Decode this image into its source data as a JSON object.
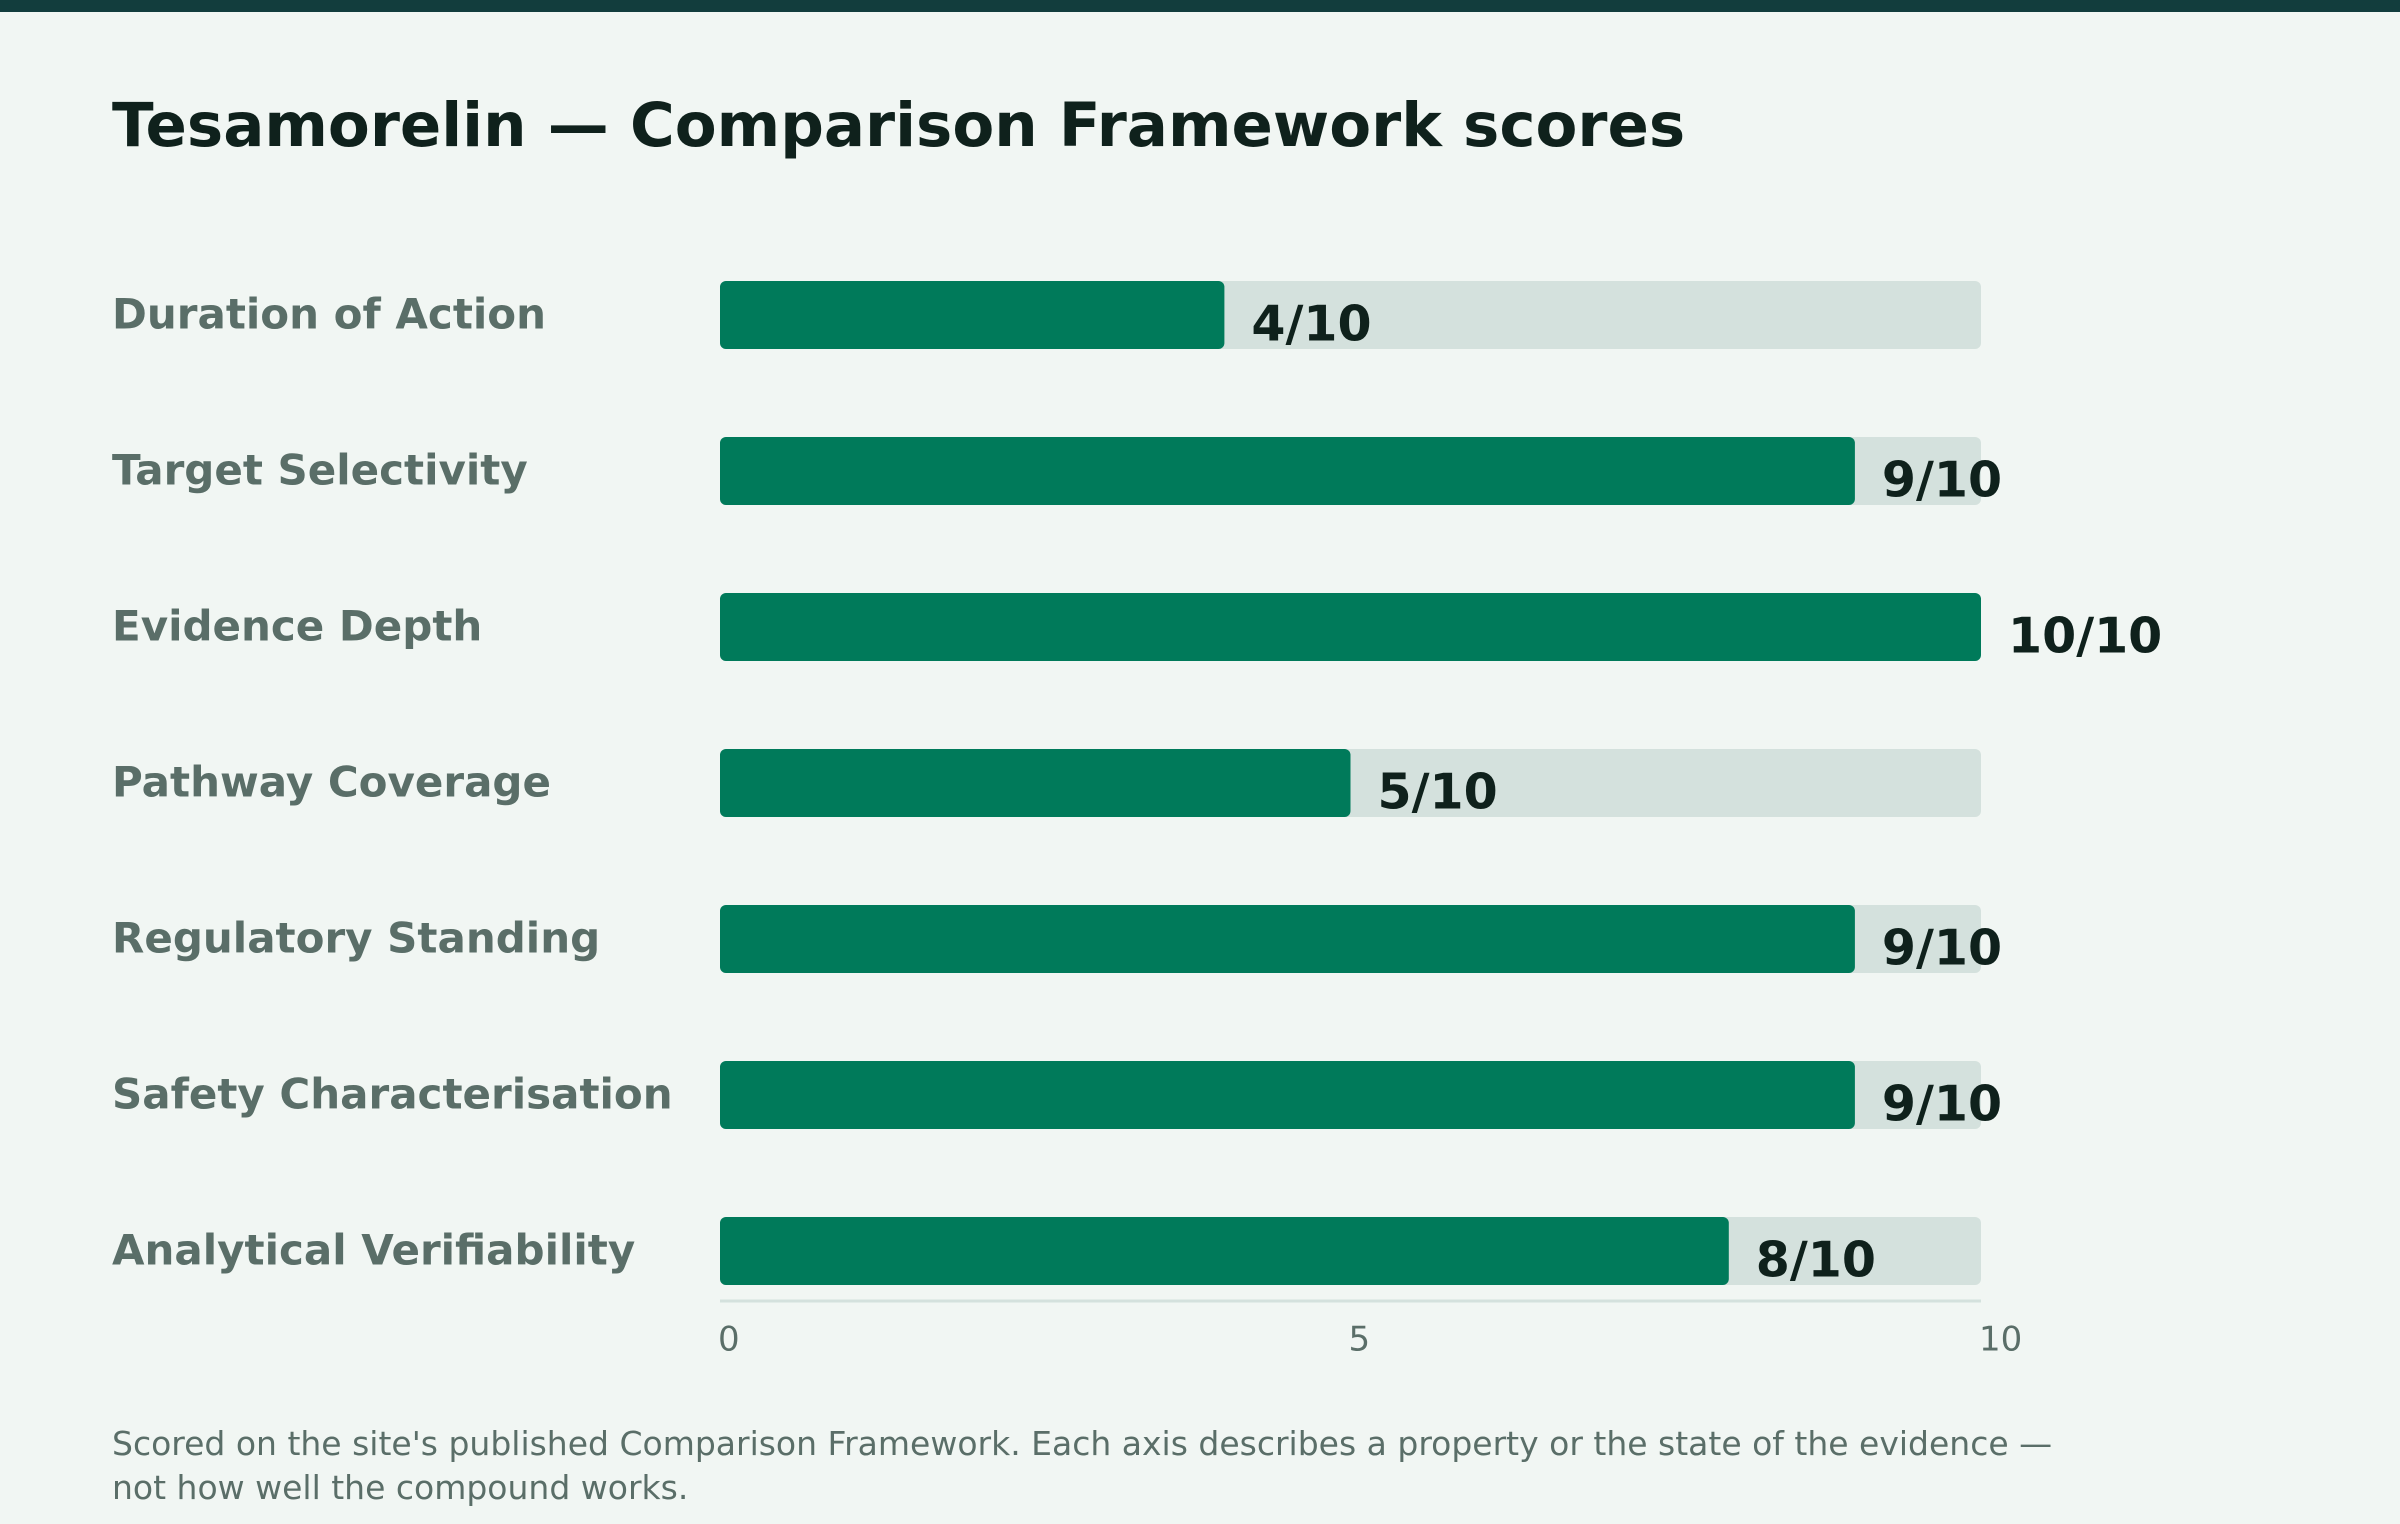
{
  "title": "Tesamorelin — Comparison Framework scores",
  "footnote": "Scored on the site's published Comparison Framework. Each axis describes a property or the state of the evidence — not how well the compound works.",
  "colors": {
    "bar_fill": "#007a5a",
    "track": "#d4e1dd",
    "label": "#5a6e68",
    "value_label": "#0f211c",
    "axis": "#d4e1dd",
    "top_bar": "#123d3d",
    "background": "#f1f6f3"
  },
  "chart_data": {
    "type": "bar",
    "orientation": "horizontal",
    "categories": [
      "Duration of Action",
      "Target Selectivity",
      "Evidence Depth",
      "Pathway Coverage",
      "Regulatory Standing",
      "Safety Characterisation",
      "Analytical Verifiability"
    ],
    "values": [
      4,
      9,
      10,
      5,
      9,
      9,
      8
    ],
    "value_labels": [
      "4/10",
      "9/10",
      "10/10",
      "5/10",
      "9/10",
      "9/10",
      "8/10"
    ],
    "xlim": [
      0,
      10
    ],
    "x_ticks": [
      0,
      5,
      10
    ],
    "x_tick_labels": [
      "0",
      "5",
      "10"
    ],
    "grid": false,
    "legend": "none"
  }
}
